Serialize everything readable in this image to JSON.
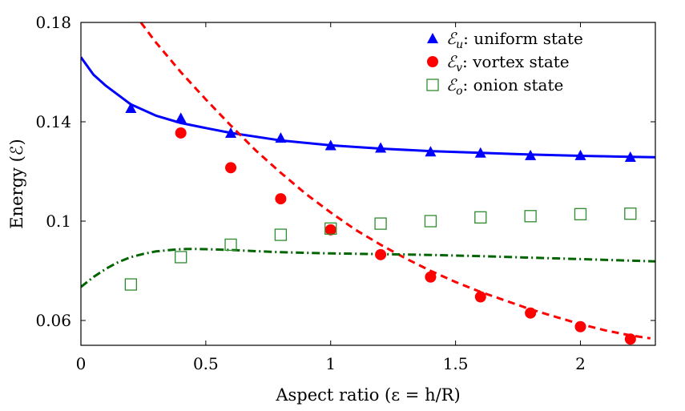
{
  "chart_data": {
    "type": "scatter",
    "xlabel": "Aspect ratio (ε = h/R)",
    "ylabel": "Energy (ℰ)",
    "xlim": [
      0,
      2.3
    ],
    "ylim": [
      0.05,
      0.18
    ],
    "xticks": [
      0,
      0.5,
      1,
      1.5,
      2
    ],
    "xtick_labels": [
      "0",
      "0.5",
      "1",
      "1.5",
      "2"
    ],
    "yticks": [
      0.06,
      0.1,
      0.14,
      0.18
    ],
    "ytick_labels": [
      "0.06",
      "0.1",
      "0.14",
      "0.18"
    ],
    "grid": false,
    "legend_position": "top-right",
    "series": [
      {
        "name": "uniform state",
        "symbol": "ℰ",
        "subscript": "u",
        "marker": "triangle",
        "color": "#0000ff",
        "x": [
          0.2,
          0.4,
          0.6,
          0.8,
          1.0,
          1.2,
          1.4,
          1.6,
          1.8,
          2.0,
          2.2
        ],
        "y": [
          0.1455,
          0.1415,
          0.1355,
          0.1335,
          0.1305,
          0.1295,
          0.128,
          0.1275,
          0.1265,
          0.1265,
          0.1258
        ]
      },
      {
        "name": "vortex state",
        "symbol": "ℰ",
        "subscript": "v",
        "marker": "circle",
        "color": "#ff0000",
        "x": [
          0.4,
          0.6,
          0.8,
          1.0,
          1.2,
          1.4,
          1.6,
          1.8,
          2.0,
          2.2
        ],
        "y": [
          0.1355,
          0.1215,
          0.109,
          0.0965,
          0.0865,
          0.0775,
          0.0695,
          0.063,
          0.0575,
          0.0525
        ]
      },
      {
        "name": "onion state",
        "symbol": "ℰ",
        "subscript": "o",
        "marker": "square-open",
        "color": "#2e8b2e",
        "x": [
          0.2,
          0.4,
          0.6,
          0.8,
          1.0,
          1.2,
          1.4,
          1.6,
          1.8,
          2.0,
          2.2
        ],
        "y": [
          0.0745,
          0.0855,
          0.0905,
          0.0945,
          0.097,
          0.099,
          0.1,
          0.1015,
          0.102,
          0.1028,
          0.103
        ]
      }
    ],
    "curves": [
      {
        "style": "solid",
        "color": "#0000ff",
        "x": [
          0,
          0.05,
          0.1,
          0.2,
          0.3,
          0.4,
          0.5,
          0.6,
          0.8,
          1.0,
          1.2,
          1.4,
          1.6,
          1.8,
          2.0,
          2.2,
          2.3
        ],
        "y": [
          0.166,
          0.159,
          0.1545,
          0.147,
          0.1425,
          0.1395,
          0.1375,
          0.1355,
          0.1325,
          0.1305,
          0.1292,
          0.1282,
          0.1275,
          0.1268,
          0.1263,
          0.1259,
          0.1257
        ]
      },
      {
        "style": "dashed",
        "color": "#ff0000",
        "x": [
          0.24,
          0.3,
          0.4,
          0.5,
          0.6,
          0.7,
          0.8,
          0.9,
          1.0,
          1.1,
          1.2,
          1.3,
          1.4,
          1.5,
          1.6,
          1.7,
          1.8,
          1.9,
          2.0,
          2.1,
          2.2,
          2.28
        ],
        "y": [
          0.18,
          0.172,
          0.16,
          0.149,
          0.1385,
          0.1285,
          0.1195,
          0.111,
          0.1035,
          0.0965,
          0.0905,
          0.085,
          0.08,
          0.0755,
          0.0715,
          0.068,
          0.0645,
          0.0615,
          0.0585,
          0.056,
          0.054,
          0.0528
        ]
      },
      {
        "style": "dashdot",
        "color": "#006400",
        "x": [
          0,
          0.05,
          0.1,
          0.15,
          0.2,
          0.25,
          0.3,
          0.35,
          0.4,
          0.45,
          0.5,
          0.6,
          0.7,
          0.8,
          1.0,
          1.2,
          1.4,
          1.6,
          1.8,
          2.0,
          2.2,
          2.3
        ],
        "y": [
          0.0735,
          0.0775,
          0.0808,
          0.0835,
          0.0855,
          0.0868,
          0.0878,
          0.0883,
          0.0887,
          0.0888,
          0.0887,
          0.0884,
          0.0879,
          0.0875,
          0.087,
          0.0867,
          0.0864,
          0.0859,
          0.0853,
          0.0847,
          0.0841,
          0.0838
        ]
      }
    ]
  }
}
